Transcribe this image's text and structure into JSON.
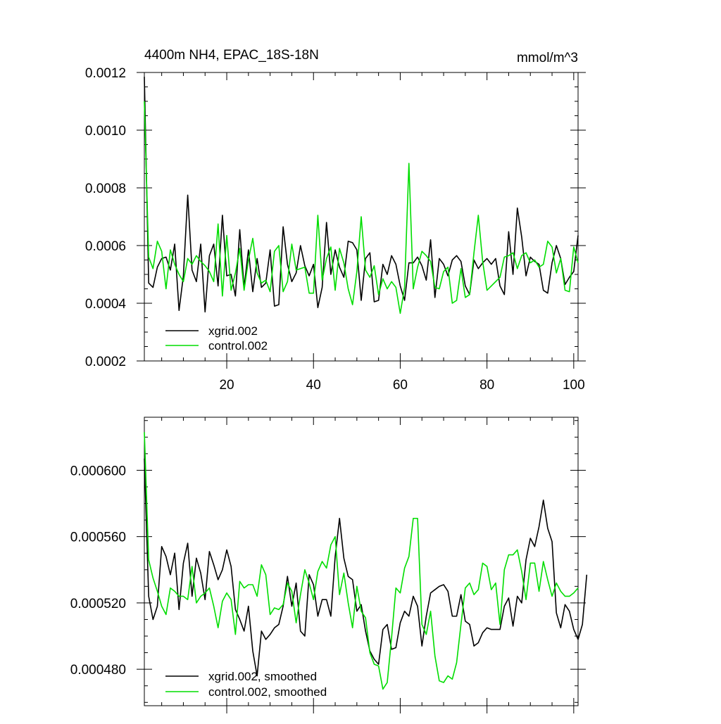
{
  "chart_data": [
    {
      "type": "line",
      "title": "4400m NH4, EPAC_18S-18N",
      "units_label": "mmol/m^3",
      "xlim": [
        1,
        101
      ],
      "ylim": [
        0.0002,
        0.0012
      ],
      "x_ticks": [
        20,
        40,
        60,
        80,
        100
      ],
      "x_tick_labels": [
        "20",
        "40",
        "60",
        "80",
        "100"
      ],
      "y_ticks": [
        0.0002,
        0.0004,
        0.0006,
        0.0008,
        0.001,
        0.0012
      ],
      "y_tick_labels": [
        "0.0002",
        "0.0004",
        "0.0006",
        "0.0008",
        "0.0010",
        "0.0012"
      ],
      "legend_position": "bottom-left",
      "series": [
        {
          "name": "xgrid.002",
          "color": "#000000",
          "values": [
            0.001185,
            0.00047,
            0.000455,
            0.000525,
            0.000555,
            0.00056,
            0.000515,
            0.000605,
            0.000375,
            0.000495,
            0.000775,
            0.000515,
            0.000475,
            0.000605,
            0.00037,
            0.000565,
            0.000605,
            0.00046,
            0.000705,
            0.000495,
            0.0005,
            0.000425,
            0.000655,
            0.000455,
            0.000585,
            0.00044,
            0.000555,
            0.000455,
            0.00047,
            0.000585,
            0.00039,
            0.000395,
            0.000665,
            0.000535,
            0.000475,
            0.000505,
            0.0006,
            0.00053,
            0.000495,
            0.000535,
            0.000385,
            0.000455,
            0.00068,
            0.0005,
            0.000585,
            0.000525,
            0.00049,
            0.000615,
            0.00061,
            0.000585,
            0.00041,
            0.000555,
            0.000575,
            0.000405,
            0.00041,
            0.000535,
            0.0005,
            0.000565,
            0.000535,
            0.00046,
            0.00041,
            0.00054,
            0.00054,
            0.00056,
            0.00053,
            0.00048,
            0.00062,
            0.00042,
            0.000555,
            0.000535,
            0.000495,
            0.00055,
            0.000565,
            0.000545,
            0.00046,
            0.00043,
            0.00055,
            0.00052,
            0.00054,
            0.000555,
            0.000535,
            0.000555,
            0.00046,
            0.00043,
            0.000648,
            0.0005,
            0.00073,
            0.00063,
            0.000495,
            0.00056,
            0.000545,
            0.000535,
            0.000445,
            0.000435,
            0.00054,
            0.0006,
            0.000555,
            0.000465,
            0.00049,
            0.00051,
            0.000635
          ]
        },
        {
          "name": "control.002",
          "color": "#00dd00",
          "values": [
            0.0011,
            0.00056,
            0.00052,
            0.000615,
            0.00058,
            0.00045,
            0.000585,
            0.000535,
            0.0005,
            0.000475,
            0.000555,
            0.000535,
            0.000565,
            0.000545,
            0.00053,
            0.00051,
            0.000475,
            0.000675,
            0.000425,
            0.000635,
            0.000445,
            0.000505,
            0.00059,
            0.000445,
            0.00055,
            0.000625,
            0.000505,
            0.00047,
            0.00048,
            0.00044,
            0.00058,
            0.0006,
            0.00044,
            0.000475,
            0.000605,
            0.000515,
            0.00052,
            0.000525,
            0.000435,
            0.000435,
            0.000705,
            0.00048,
            0.000555,
            0.000595,
            0.000445,
            0.00059,
            0.00054,
            0.00045,
            0.000395,
            0.00051,
            0.0007,
            0.000515,
            0.00049,
            0.00053,
            0.00043,
            0.000485,
            0.00045,
            0.000475,
            0.000455,
            0.000365,
            0.000455,
            0.000885,
            0.00045,
            0.000525,
            0.00058,
            0.000565,
            0.000545,
            0.000455,
            0.00045,
            0.00051,
            0.000525,
            0.0004,
            0.00041,
            0.00052,
            0.00042,
            0.00043,
            0.000575,
            0.000705,
            0.000545,
            0.000445,
            0.00046,
            0.000475,
            0.00049,
            0.00056,
            0.000565,
            0.000575,
            0.00052,
            0.000565,
            0.000575,
            0.00054,
            0.00055,
            0.000525,
            0.000535,
            0.000615,
            0.000595,
            0.000505,
            0.000555,
            0.000445,
            0.00044,
            0.000595,
            0.00054
          ]
        }
      ]
    },
    {
      "type": "line",
      "xlim": [
        1,
        101
      ],
      "ylim": [
        0.000458,
        0.000632
      ],
      "x_ticks": [
        20,
        40,
        60,
        80,
        100
      ],
      "y_ticks": [
        0.00048,
        0.00052,
        0.00056,
        0.0006
      ],
      "y_tick_labels": [
        "0.000480",
        "0.000520",
        "0.000560",
        "0.000600"
      ],
      "legend_position": "bottom-left",
      "series": [
        {
          "name": "xgrid.002, smoothed",
          "color": "#000000",
          "values": [
            0.000607,
            0.000524,
            0.00051,
            0.000518,
            0.000554,
            0.000548,
            0.000537,
            0.00055,
            0.000516,
            0.000544,
            0.000556,
            0.000524,
            0.000547,
            0.000538,
            0.000522,
            0.000551,
            0.000543,
            0.000534,
            0.00054,
            0.000552,
            0.000542,
            0.000516,
            0.00051,
            0.000503,
            0.000518,
            0.000491,
            0.000476,
            0.000503,
            0.000498,
            0.000501,
            0.000505,
            0.000507,
            0.000518,
            0.000536,
            0.000518,
            0.000532,
            0.000503,
            0.0005,
            0.000537,
            0.000531,
            0.000512,
            0.000522,
            0.000522,
            0.000512,
            0.000548,
            0.000571,
            0.000547,
            0.000536,
            0.000534,
            0.000515,
            0.000519,
            0.000503,
            0.000491,
            0.000486,
            0.000483,
            0.000504,
            0.000507,
            0.000492,
            0.000493,
            0.000508,
            0.000515,
            0.000512,
            0.000524,
            0.000518,
            0.000494,
            0.000512,
            0.000526,
            0.000528,
            0.00053,
            0.000531,
            0.000527,
            0.000512,
            0.000512,
            0.000525,
            0.000509,
            0.000507,
            0.000494,
            0.000496,
            0.000502,
            0.000505,
            0.000504,
            0.000504,
            0.000504,
            0.000518,
            0.000523,
            0.000506,
            0.000524,
            0.00052,
            0.000546,
            0.000559,
            0.000554,
            0.000566,
            0.000582,
            0.000565,
            0.000557,
            0.000514,
            0.000505,
            0.000519,
            0.000515,
            0.000504,
            0.000498,
            0.000507,
            0.000537
          ]
        },
        {
          "name": "control.002, smoothed",
          "color": "#00dd00",
          "values": [
            0.000623,
            0.000546,
            0.000535,
            0.000527,
            0.000518,
            0.000513,
            0.000529,
            0.000527,
            0.000524,
            0.000524,
            0.000522,
            0.000542,
            0.00052,
            0.000524,
            0.000526,
            0.000529,
            0.000518,
            0.000505,
            0.000521,
            0.000526,
            0.000522,
            0.000501,
            0.000533,
            0.000529,
            0.000531,
            0.000531,
            0.000524,
            0.000543,
            0.000537,
            0.000513,
            0.000517,
            0.000516,
            0.000519,
            0.000532,
            0.000527,
            0.000508,
            0.000525,
            0.00054,
            0.000532,
            0.000522,
            0.000539,
            0.000545,
            0.000541,
            0.000555,
            0.00056,
            0.000525,
            0.000538,
            0.00052,
            0.000505,
            0.00053,
            0.000515,
            0.000511,
            0.00049,
            0.000483,
            0.000482,
            0.000468,
            0.000472,
            0.000499,
            0.000529,
            0.000526,
            0.000541,
            0.000548,
            0.000571,
            0.000571,
            0.000507,
            0.000501,
            0.000515,
            0.000488,
            0.000473,
            0.000472,
            0.000476,
            0.000474,
            0.000484,
            0.000507,
            0.000529,
            0.000532,
            0.000525,
            0.000528,
            0.000544,
            0.000542,
            0.000528,
            0.000532,
            0.000507,
            0.00054,
            0.000549,
            0.000549,
            0.000552,
            0.000539,
            0.000522,
            0.000544,
            0.000544,
            0.000527,
            0.000545,
            0.000534,
            0.000524,
            0.000532,
            0.000527,
            0.000524,
            0.000524,
            0.000526,
            0.000529
          ]
        }
      ]
    }
  ]
}
